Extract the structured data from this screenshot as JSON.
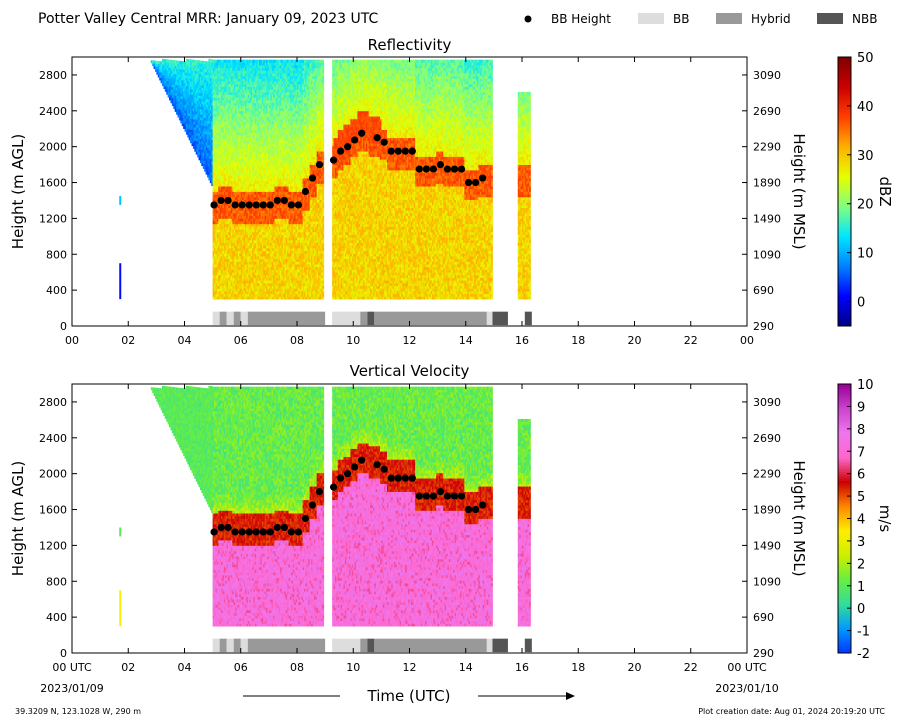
{
  "header": {
    "title": "Potter Valley Central MRR:  January 09, 2023 UTC",
    "legend": [
      {
        "label": "BB Height",
        "kind": "dot",
        "color": "#000000"
      },
      {
        "label": "BB",
        "kind": "box",
        "color": "#dddddd"
      },
      {
        "label": "Hybrid",
        "kind": "box",
        "color": "#999999"
      },
      {
        "label": "NBB",
        "kind": "box",
        "color": "#555555"
      }
    ]
  },
  "footer": {
    "location": "39.3209 N, 123.1028 W, 290 m",
    "creation": "Plot creation date: Aug 01, 2024 20:19:20 UTC",
    "xlabel": "Time (UTC)",
    "start_date": "2023/01/09",
    "end_date": "2023/01/10"
  },
  "chart_data": [
    {
      "type": "heatmap",
      "title": "Reflectivity",
      "ylabel": "Height (m AGL)",
      "ylabel_right": "Height (m MSL)",
      "xlim": [
        0,
        24
      ],
      "ylim": [
        0,
        3000
      ],
      "x_ticks": [
        "00",
        "02",
        "04",
        "06",
        "08",
        "10",
        "12",
        "14",
        "16",
        "18",
        "20",
        "22",
        "00"
      ],
      "y_ticks": [
        0,
        400,
        800,
        1200,
        1600,
        2000,
        2400,
        2800
      ],
      "y_ticks_right": [
        "290",
        "690",
        "1090",
        "1490",
        "1890",
        "2290",
        "2690",
        "3090"
      ],
      "colorbar": {
        "label": "dBZ",
        "min": -5,
        "max": 50,
        "ticks": [
          0,
          10,
          20,
          30,
          40,
          50
        ],
        "colors": [
          "#000080",
          "#0000ff",
          "#0080ff",
          "#00e5ff",
          "#80ff80",
          "#e5ff00",
          "#ffb000",
          "#ff4000",
          "#cc0000",
          "#800000"
        ]
      },
      "bb_height": {
        "x": [
          5.05,
          5.3,
          5.55,
          5.8,
          6.05,
          6.3,
          6.55,
          6.8,
          7.05,
          7.3,
          7.55,
          7.8,
          8.05,
          8.3,
          8.55,
          8.8,
          9.3,
          9.55,
          9.8,
          10.05,
          10.3,
          10.85,
          11.1,
          11.35,
          11.6,
          11.85,
          12.1,
          12.35,
          12.6,
          12.85,
          13.1,
          13.35,
          13.6,
          13.85,
          14.1,
          14.35,
          14.6
        ],
        "y": [
          1350,
          1400,
          1400,
          1350,
          1350,
          1350,
          1350,
          1350,
          1350,
          1400,
          1400,
          1350,
          1350,
          1500,
          1650,
          1800,
          1850,
          1950,
          2000,
          2075,
          2150,
          2100,
          2050,
          1950,
          1950,
          1950,
          1950,
          1750,
          1750,
          1750,
          1800,
          1750,
          1750,
          1750,
          1600,
          1600,
          1650
        ]
      },
      "bb_type_bar": [
        {
          "start": 5.0,
          "end": 5.25,
          "type": "BB"
        },
        {
          "start": 5.25,
          "end": 5.5,
          "type": "Hybrid"
        },
        {
          "start": 5.5,
          "end": 5.75,
          "type": "BB"
        },
        {
          "start": 5.75,
          "end": 6.0,
          "type": "Hybrid"
        },
        {
          "start": 6.0,
          "end": 6.25,
          "type": "BB"
        },
        {
          "start": 6.25,
          "end": 9.0,
          "type": "Hybrid"
        },
        {
          "start": 9.25,
          "end": 10.25,
          "type": "BB"
        },
        {
          "start": 10.25,
          "end": 10.5,
          "type": "Hybrid"
        },
        {
          "start": 10.5,
          "end": 10.75,
          "type": "NBB"
        },
        {
          "start": 10.75,
          "end": 14.75,
          "type": "Hybrid"
        },
        {
          "start": 14.75,
          "end": 14.95,
          "type": "BB"
        },
        {
          "start": 14.95,
          "end": 15.5,
          "type": "NBB"
        },
        {
          "start": 16.1,
          "end": 16.35,
          "type": "NBB"
        }
      ],
      "grid": false
    },
    {
      "type": "heatmap",
      "title": "Vertical Velocity",
      "ylabel": "Height (m AGL)",
      "ylabel_right": "Height (m MSL)",
      "xlim": [
        0,
        24
      ],
      "ylim": [
        0,
        3000
      ],
      "x_ticks": [
        "00 UTC",
        "02",
        "04",
        "06",
        "08",
        "10",
        "12",
        "14",
        "16",
        "18",
        "20",
        "22",
        "00 UTC"
      ],
      "y_ticks": [
        0,
        400,
        800,
        1200,
        1600,
        2000,
        2400,
        2800
      ],
      "y_ticks_right": [
        "290",
        "690",
        "1090",
        "1490",
        "1890",
        "2290",
        "2690",
        "3090"
      ],
      "colorbar": {
        "label": "m/s",
        "min": -2,
        "max": 10,
        "ticks": [
          -2,
          -1,
          0,
          1,
          2,
          3,
          4,
          5,
          6,
          7,
          8,
          9,
          10
        ],
        "colors": [
          "#0033ff",
          "#0099ff",
          "#33dd99",
          "#66ee44",
          "#ccee00",
          "#ffee00",
          "#ff8800",
          "#cc0000",
          "#ff66cc",
          "#ee77ee",
          "#cc44cc",
          "#990099"
        ]
      },
      "bb_height": {
        "x": [
          5.05,
          5.3,
          5.55,
          5.8,
          6.05,
          6.3,
          6.55,
          6.8,
          7.05,
          7.3,
          7.55,
          7.8,
          8.05,
          8.3,
          8.55,
          8.8,
          9.3,
          9.55,
          9.8,
          10.05,
          10.3,
          10.85,
          11.1,
          11.35,
          11.6,
          11.85,
          12.1,
          12.35,
          12.6,
          12.85,
          13.1,
          13.35,
          13.6,
          13.85,
          14.1,
          14.35,
          14.6
        ],
        "y": [
          1350,
          1400,
          1400,
          1350,
          1350,
          1350,
          1350,
          1350,
          1350,
          1400,
          1400,
          1350,
          1350,
          1500,
          1650,
          1800,
          1850,
          1950,
          2000,
          2075,
          2150,
          2100,
          2050,
          1950,
          1950,
          1950,
          1950,
          1750,
          1750,
          1750,
          1800,
          1750,
          1750,
          1750,
          1600,
          1600,
          1650
        ]
      },
      "bb_type_bar": [
        {
          "start": 5.0,
          "end": 5.25,
          "type": "BB"
        },
        {
          "start": 5.25,
          "end": 5.5,
          "type": "Hybrid"
        },
        {
          "start": 5.5,
          "end": 5.75,
          "type": "BB"
        },
        {
          "start": 5.75,
          "end": 6.0,
          "type": "Hybrid"
        },
        {
          "start": 6.0,
          "end": 6.25,
          "type": "BB"
        },
        {
          "start": 6.25,
          "end": 9.0,
          "type": "Hybrid"
        },
        {
          "start": 9.25,
          "end": 10.25,
          "type": "BB"
        },
        {
          "start": 10.25,
          "end": 10.5,
          "type": "Hybrid"
        },
        {
          "start": 10.5,
          "end": 10.75,
          "type": "NBB"
        },
        {
          "start": 10.75,
          "end": 14.75,
          "type": "Hybrid"
        },
        {
          "start": 14.75,
          "end": 14.95,
          "type": "BB"
        },
        {
          "start": 14.95,
          "end": 15.5,
          "type": "NBB"
        },
        {
          "start": 16.1,
          "end": 16.35,
          "type": "NBB"
        }
      ],
      "grid": false
    }
  ]
}
